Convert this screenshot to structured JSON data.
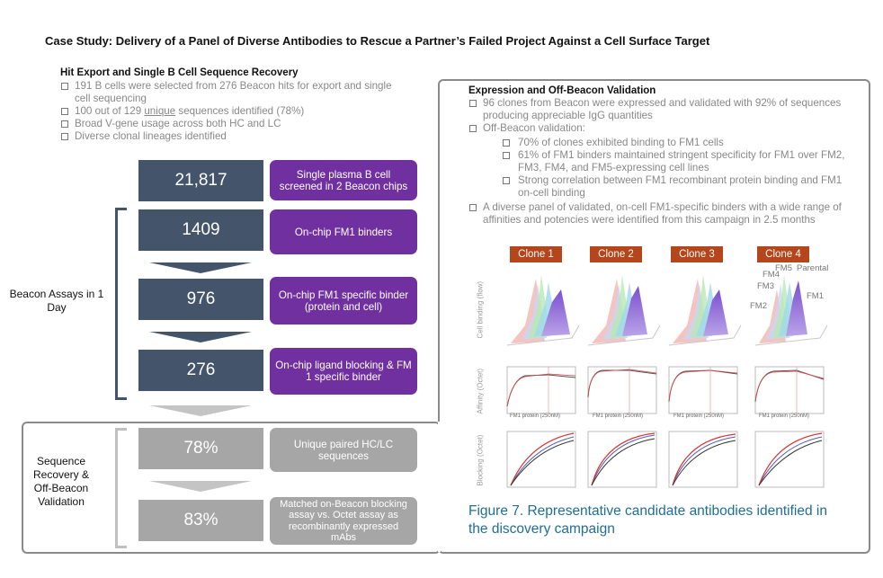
{
  "title": "Case Study: Delivery of a Panel of Diverse Antibodies to Rescue a Partner’s Failed Project Against a Cell Surface Target",
  "left_section": {
    "heading": "Hit Export and Single B Cell Sequence Recovery",
    "bullets": {
      "b1": "191 B cells were selected from 276 Beacon hits for export and single cell sequencing",
      "b2_pre": "100 out of 129 ",
      "b2_under": "unique",
      "b2_post": " sequences identified (78%)",
      "b3": "Broad V-gene usage across both HC and LC",
      "b4": "Diverse clonal lineages identified"
    }
  },
  "funnel": {
    "steps": [
      {
        "value": "21,817",
        "label": "Single plasma B cell screened in 2 Beacon chips"
      },
      {
        "value": "1409",
        "label": "On-chip FM1 binders"
      },
      {
        "value": "976",
        "label": "On-chip FM1 specific binder (protein and cell)"
      },
      {
        "value": "276",
        "label": "On-chip ligand blocking & FM 1 specific binder"
      },
      {
        "value": "78%",
        "label": "Unique paired HC/LC sequences"
      },
      {
        "value": "83%",
        "label": "Matched on-Beacon blocking assay vs. Octet assay as recombinantly expressed mAbs"
      }
    ],
    "group1": "Beacon Assays in 1 Day",
    "group2": "Sequence Recovery & Off-Beacon Validation"
  },
  "right_section": {
    "heading": "Expression and Off-Beacon Validation",
    "b1": "96 clones from Beacon were expressed and validated with 92% of sequences producing appreciable IgG quantities",
    "b2": "Off-Beacon validation:",
    "sub1": "70% of clones exhibited binding to FM1 cells",
    "sub2": "61% of FM1 binders maintained stringent specificity for FM1 over FM2, FM3, FM4, and FM5-expressing cell lines",
    "sub3": "Strong correlation between FM1 recombinant protein binding and FM1 on-cell binding",
    "b3": "A diverse panel of validated, on-cell FM1-specific binders with a wide range of affinities and potencies were identified from this campaign in 2.5 months"
  },
  "figure": {
    "clones": [
      "Clone 1",
      "Clone 2",
      "Clone 3",
      "Clone 4"
    ],
    "row_labels": {
      "cell": "Cell binding (flow)",
      "affinity": "Affinity (Octet)",
      "blocking": "Blocking (Octet)"
    },
    "fm_labels": {
      "fm5": "FM5",
      "parental": "Parental",
      "fm4": "FM4",
      "fm3": "FM3",
      "fm1": "FM1",
      "fm2": "FM2"
    },
    "xaxis_label": "FM1 protein (250nM)",
    "caption": "Figure 7. Representative candidate antibodies identified in the discovery campaign"
  },
  "colors": {
    "dark_box": "#44546a",
    "purple": "#7030a0",
    "gray_box": "#a6a6a6",
    "clone_tag": "#b5451b",
    "caption": "#1f6e93"
  }
}
